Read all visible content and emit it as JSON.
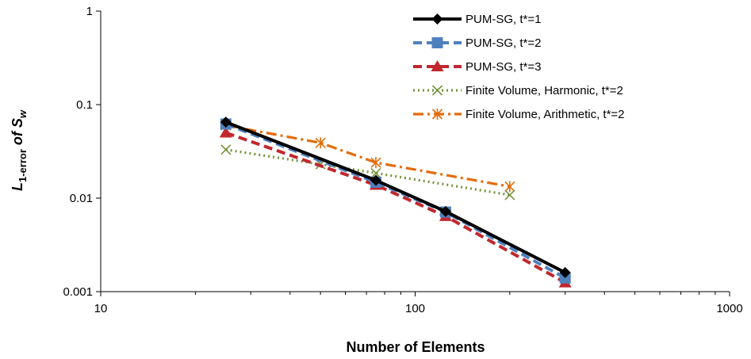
{
  "chart_data": {
    "type": "line",
    "xlabel": "Number of Elements",
    "ylabel": {
      "main": "L",
      "sub": "1-error",
      "mid": " of S",
      "sub2": "w"
    },
    "xscale": "log",
    "yscale": "log",
    "xlim": [
      10,
      1000
    ],
    "ylim": [
      0.001,
      1
    ],
    "xticks": [
      10,
      100,
      1000
    ],
    "xtick_labels": [
      "10",
      "100",
      "1000"
    ],
    "yticks": [
      0.001,
      0.01,
      0.1,
      1
    ],
    "ytick_labels": [
      "0.001",
      "0.01",
      "0.1",
      "1"
    ],
    "grid": false,
    "legend_position": "top-right",
    "series": [
      {
        "name": "PUM-SG, t*=1",
        "color": "#000000",
        "line_style": "solid",
        "marker": "diamond",
        "x": [
          25,
          75,
          125,
          300
        ],
        "y": [
          0.065,
          0.0155,
          0.0072,
          0.0016
        ]
      },
      {
        "name": "PUM-SG, t*=2",
        "color": "#4f81bd",
        "line_style": "dashed",
        "marker": "square",
        "x": [
          25,
          75,
          125,
          300
        ],
        "y": [
          0.062,
          0.0148,
          0.0071,
          0.0014
        ]
      },
      {
        "name": "PUM-SG, t*=3",
        "color": "#c0282e",
        "line_style": "dashed",
        "marker": "triangle",
        "x": [
          25,
          75,
          125,
          300
        ],
        "y": [
          0.05,
          0.0138,
          0.0064,
          0.00125
        ]
      },
      {
        "name": "Finite Volume, Harmonic, t*=2",
        "color": "#77933c",
        "line_style": "dotted",
        "marker": "x",
        "x": [
          25,
          50,
          75,
          200
        ],
        "y": [
          0.033,
          0.023,
          0.0185,
          0.0108
        ]
      },
      {
        "name": "Finite Volume, Arithmetic, t*=2",
        "color": "#e46c0a",
        "line_style": "dashdot",
        "marker": "asterisk",
        "x": [
          25,
          50,
          75,
          200
        ],
        "y": [
          0.06,
          0.039,
          0.024,
          0.0133
        ]
      }
    ]
  }
}
